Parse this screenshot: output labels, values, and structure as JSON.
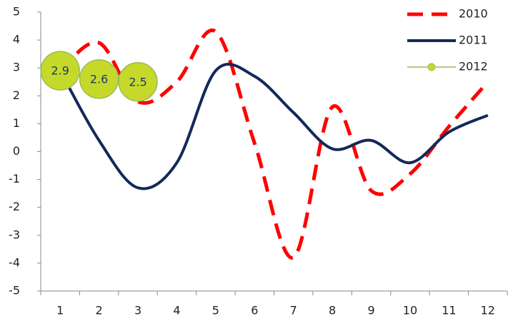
{
  "chart_data": {
    "type": "line",
    "categories": [
      "1",
      "2",
      "3",
      "4",
      "5",
      "6",
      "7",
      "8",
      "9",
      "10",
      "11",
      "12"
    ],
    "series": [
      {
        "name": "2010",
        "color": "#ff0000",
        "line_style": "dashed",
        "values": [
          2.9,
          3.9,
          1.8,
          2.5,
          4.3,
          0.3,
          -3.8,
          1.6,
          -1.4,
          -0.8,
          0.9,
          2.5
        ]
      },
      {
        "name": "2011",
        "color": "#14285a",
        "line_style": "solid",
        "values": [
          2.9,
          0.4,
          -1.3,
          -0.4,
          2.9,
          2.7,
          1.4,
          0.1,
          0.4,
          -0.4,
          0.7,
          1.3
        ]
      },
      {
        "name": "2012",
        "color": "#9bbb59",
        "line_style": "solid",
        "marker": "circle",
        "marker_color": "#c5d92a",
        "data_labels": true,
        "values": [
          2.9,
          2.6,
          2.5,
          null,
          null,
          null,
          null,
          null,
          null,
          null,
          null,
          null
        ]
      }
    ],
    "ylim": [
      -5,
      5
    ],
    "yticks": [
      -5,
      -4,
      -3,
      -2,
      -1,
      0,
      1,
      2,
      3,
      4,
      5
    ],
    "smooth": true,
    "legend": "top-right"
  }
}
